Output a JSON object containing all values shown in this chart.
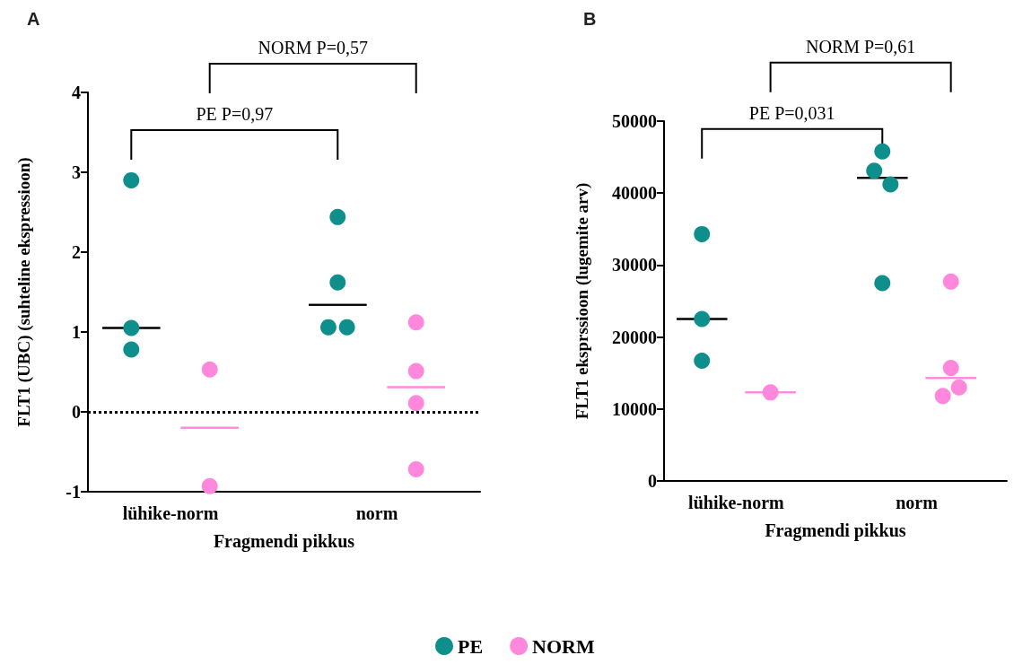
{
  "chart_data": [
    {
      "type": "scatter",
      "title": "A",
      "categories": [
        "lühike-norm",
        "norm"
      ],
      "xlabel": "Fragmendi pikkus",
      "ylabel": "FLT1 (UBC) (suhteline ekspressioon)",
      "ylim": [
        -1,
        4
      ],
      "yticks": [
        -1,
        0,
        1,
        2,
        3,
        4
      ],
      "grid": false,
      "marker": "circle",
      "legend": false,
      "ref_lines": [
        {
          "axis": "y",
          "value": 0,
          "line_style": "dotted",
          "color": "#000000"
        }
      ],
      "annotations": [
        "PE P=0,97",
        "NORM P=0,57"
      ],
      "series": [
        {
          "color": "#0e8f8c",
          "x": [
            "lühike-norm",
            "lühike-norm",
            "lühike-norm",
            "norm",
            "norm",
            "norm",
            "norm"
          ],
          "values": [
            2.9,
            1.05,
            0.78,
            2.44,
            1.62,
            1.06,
            1.06
          ]
        },
        {
          "color": "#ff88dd",
          "x": [
            "lühike-norm",
            "lühike-norm",
            "norm",
            "norm",
            "norm",
            "norm"
          ],
          "values": [
            0.53,
            -0.93,
            1.12,
            0.51,
            0.11,
            -0.72
          ]
        },
        {
          "type": "box",
          "color": "#000000",
          "boxes": [
            {
              "low": 1.05,
              "q1": 1.05,
              "median": 1.05,
              "q3": 1.05,
              "high": 1.05
            },
            {
              "low": 1.34,
              "q1": 1.34,
              "median": 1.34,
              "q3": 1.34,
              "high": 1.34
            }
          ]
        },
        {
          "type": "box",
          "color": "#ff88dd",
          "boxes": [
            {
              "low": -0.2,
              "q1": -0.2,
              "median": -0.2,
              "q3": -0.2,
              "high": -0.2
            },
            {
              "low": 0.31,
              "q1": 0.31,
              "median": 0.31,
              "q3": 0.31,
              "high": 0.31
            }
          ]
        }
      ]
    },
    {
      "type": "scatter",
      "title": "B",
      "categories": [
        "lühike-norm",
        "norm"
      ],
      "xlabel": "Fragmendi pikkus",
      "ylabel": "FLT1 eksprssioon (lugemite arv)",
      "ylim": [
        0,
        50000
      ],
      "yticks": [
        0,
        10000,
        20000,
        30000,
        40000,
        50000
      ],
      "grid": false,
      "marker": "circle",
      "legend": "bottom",
      "annotations": [
        "PE P=0,031",
        "NORM P=0,61"
      ],
      "series": [
        {
          "name": "PE",
          "color": "#0e8f8c",
          "x": [
            "lühike-norm",
            "lühike-norm",
            "lühike-norm",
            "norm",
            "norm",
            "norm",
            "norm"
          ],
          "values": [
            34300,
            22500,
            16700,
            43100,
            45800,
            41200,
            27500
          ]
        },
        {
          "name": "NORM",
          "color": "#ff88dd",
          "x": [
            "lühike-norm",
            "norm",
            "norm",
            "norm",
            "norm"
          ],
          "values": [
            12300,
            27700,
            15700,
            11800,
            13000
          ]
        },
        {
          "type": "box",
          "color": "#000000",
          "boxes": [
            {
              "low": 22500,
              "q1": 22500,
              "median": 22500,
              "q3": 22500,
              "high": 22500
            },
            {
              "low": 42100,
              "q1": 42100,
              "median": 42100,
              "q3": 42100,
              "high": 42100
            }
          ]
        },
        {
          "type": "box",
          "color": "#ff88dd",
          "boxes": [
            {
              "low": 12300,
              "q1": 12300,
              "median": 12300,
              "q3": 12300,
              "high": 12300
            },
            {
              "low": 14300,
              "q1": 14300,
              "median": 14300,
              "q3": 14300,
              "high": 14300
            }
          ]
        }
      ]
    }
  ]
}
